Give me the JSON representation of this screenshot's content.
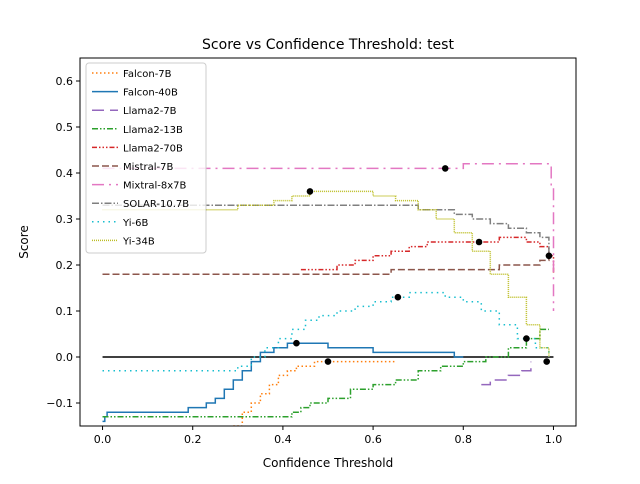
{
  "chart_data": {
    "type": "line",
    "title": "Score vs Confidence Threshold: test",
    "xlabel": "Confidence Threshold",
    "ylabel": "Score",
    "xlim": [
      -0.05,
      1.05
    ],
    "ylim": [
      -0.15,
      0.65
    ],
    "xticks": [
      0.0,
      0.2,
      0.4,
      0.6,
      0.8,
      1.0
    ],
    "xtick_labels": [
      "0.0",
      "0.2",
      "0.4",
      "0.6",
      "0.8",
      "1.0"
    ],
    "yticks": [
      -0.1,
      0.0,
      0.1,
      0.2,
      0.3,
      0.4,
      0.5,
      0.6
    ],
    "ytick_labels": [
      "−0.1",
      "0.0",
      "0.1",
      "0.2",
      "0.3",
      "0.4",
      "0.5",
      "0.6"
    ],
    "grid": false,
    "legend_position": "top-left",
    "baseline": {
      "y": 0.0,
      "x": [
        0.0,
        1.0
      ],
      "color": "#000000"
    },
    "series": [
      {
        "name": "Falcon-7B",
        "color": "#ff7f0e",
        "dash": "1.5,2.5",
        "x": [
          0.29,
          0.31,
          0.33,
          0.35,
          0.37,
          0.39,
          0.41,
          0.43,
          0.45,
          0.47,
          0.49,
          0.52,
          0.56,
          0.6,
          0.65
        ],
        "y": [
          -0.15,
          -0.12,
          -0.1,
          -0.08,
          -0.06,
          -0.04,
          -0.03,
          -0.02,
          -0.02,
          -0.01,
          -0.01,
          -0.01,
          -0.01,
          -0.01,
          -0.01
        ]
      },
      {
        "name": "Falcon-40B",
        "color": "#1f77b4",
        "dash": "",
        "x": [
          0.0,
          0.005,
          0.01,
          0.18,
          0.19,
          0.23,
          0.25,
          0.27,
          0.29,
          0.31,
          0.33,
          0.35,
          0.38,
          0.41,
          0.43,
          0.45,
          0.5,
          0.6,
          0.7,
          0.77,
          0.78,
          0.8
        ],
        "y": [
          -0.14,
          -0.13,
          -0.12,
          -0.12,
          -0.11,
          -0.1,
          -0.09,
          -0.07,
          -0.05,
          -0.03,
          -0.01,
          0.01,
          0.02,
          0.03,
          0.03,
          0.03,
          0.02,
          0.01,
          0.01,
          0.01,
          0.0,
          0.0
        ]
      },
      {
        "name": "Llama2-7B",
        "color": "#9467bd",
        "dash": "12,6",
        "x": [
          0.84,
          0.86,
          0.88,
          0.9,
          0.93,
          0.95
        ],
        "y": [
          -0.06,
          -0.05,
          -0.05,
          -0.04,
          -0.03,
          -0.01
        ]
      },
      {
        "name": "Llama2-13B",
        "color": "#2ca02c",
        "dash": "6,2,1.5,2,1.5,2",
        "x": [
          0.0,
          0.2,
          0.3,
          0.38,
          0.42,
          0.44,
          0.46,
          0.5,
          0.55,
          0.6,
          0.65,
          0.7,
          0.75,
          0.8,
          0.85,
          0.9,
          0.94,
          0.97,
          0.99
        ],
        "y": [
          -0.13,
          -0.13,
          -0.13,
          -0.13,
          -0.12,
          -0.11,
          -0.1,
          -0.09,
          -0.07,
          -0.06,
          -0.05,
          -0.03,
          -0.02,
          -0.01,
          0.0,
          0.02,
          0.04,
          0.06,
          0.06
        ]
      },
      {
        "name": "Llama2-70B",
        "color": "#d62728",
        "dash": "5,2,1.5,2,1.5,2,1.5,2",
        "x": [
          0.44,
          0.48,
          0.52,
          0.56,
          0.6,
          0.64,
          0.68,
          0.72,
          0.76,
          0.8,
          0.84,
          0.88,
          0.91,
          0.94,
          0.97,
          0.99,
          1.0
        ],
        "y": [
          0.19,
          0.19,
          0.2,
          0.21,
          0.22,
          0.23,
          0.24,
          0.25,
          0.25,
          0.25,
          0.25,
          0.26,
          0.26,
          0.25,
          0.24,
          0.22,
          0.18
        ]
      },
      {
        "name": "Mistral-7B",
        "color": "#8c564b",
        "dash": "7,3",
        "x": [
          0.0,
          0.1,
          0.2,
          0.3,
          0.4,
          0.5,
          0.6,
          0.63,
          0.64,
          0.7,
          0.8,
          0.86,
          0.88,
          0.92,
          0.96,
          0.97,
          0.99
        ],
        "y": [
          0.18,
          0.18,
          0.18,
          0.18,
          0.18,
          0.18,
          0.18,
          0.18,
          0.19,
          0.19,
          0.19,
          0.19,
          0.2,
          0.2,
          0.2,
          0.21,
          0.22
        ]
      },
      {
        "name": "Mixtral-8x7B",
        "color": "#e377c2",
        "dash": "12,5,2,5",
        "x": [
          0.0,
          0.2,
          0.4,
          0.6,
          0.75,
          0.8,
          0.9,
          0.97,
          0.99,
          0.995,
          1.0
        ],
        "y": [
          0.41,
          0.41,
          0.41,
          0.41,
          0.41,
          0.42,
          0.42,
          0.42,
          0.42,
          0.37,
          0.1
        ]
      },
      {
        "name": "SOLAR-10.7B",
        "color": "#7f7f7f",
        "dash": "7,2,1.5,2",
        "x": [
          0.0,
          0.2,
          0.4,
          0.6,
          0.66,
          0.7,
          0.74,
          0.78,
          0.82,
          0.86,
          0.9,
          0.94,
          0.97,
          0.99
        ],
        "y": [
          0.33,
          0.33,
          0.33,
          0.33,
          0.33,
          0.32,
          0.32,
          0.31,
          0.3,
          0.29,
          0.28,
          0.27,
          0.26,
          0.22
        ]
      },
      {
        "name": "Yi-6B",
        "color": "#17becf",
        "dash": "1.5,4",
        "x": [
          0.0,
          0.1,
          0.28,
          0.3,
          0.33,
          0.36,
          0.39,
          0.42,
          0.45,
          0.48,
          0.52,
          0.56,
          0.6,
          0.64,
          0.68,
          0.72,
          0.76,
          0.8,
          0.84,
          0.88,
          0.92,
          0.96,
          0.99
        ],
        "y": [
          -0.03,
          -0.03,
          -0.03,
          -0.02,
          0.0,
          0.02,
          0.04,
          0.06,
          0.08,
          0.09,
          0.1,
          0.11,
          0.12,
          0.13,
          0.14,
          0.14,
          0.13,
          0.12,
          0.1,
          0.07,
          0.04,
          0.02,
          0.0
        ]
      },
      {
        "name": "Yi-34B",
        "color": "#bcbd22",
        "dash": "1,1",
        "x": [
          0.0,
          0.1,
          0.2,
          0.3,
          0.35,
          0.38,
          0.42,
          0.46,
          0.5,
          0.55,
          0.6,
          0.65,
          0.7,
          0.74,
          0.78,
          0.82,
          0.86,
          0.9,
          0.94,
          0.97,
          0.99
        ],
        "y": [
          0.32,
          0.32,
          0.32,
          0.33,
          0.33,
          0.34,
          0.35,
          0.36,
          0.36,
          0.36,
          0.35,
          0.34,
          0.32,
          0.3,
          0.27,
          0.23,
          0.18,
          0.13,
          0.07,
          0.02,
          0.0
        ]
      }
    ],
    "markers": [
      {
        "x": 0.43,
        "y": 0.03
      },
      {
        "x": 0.5,
        "y": -0.01
      },
      {
        "x": 0.46,
        "y": 0.36
      },
      {
        "x": 0.655,
        "y": 0.13
      },
      {
        "x": 0.76,
        "y": 0.41
      },
      {
        "x": 0.835,
        "y": 0.25
      },
      {
        "x": 0.94,
        "y": 0.04
      },
      {
        "x": 0.985,
        "y": -0.01
      },
      {
        "x": 0.99,
        "y": 0.22
      }
    ]
  }
}
